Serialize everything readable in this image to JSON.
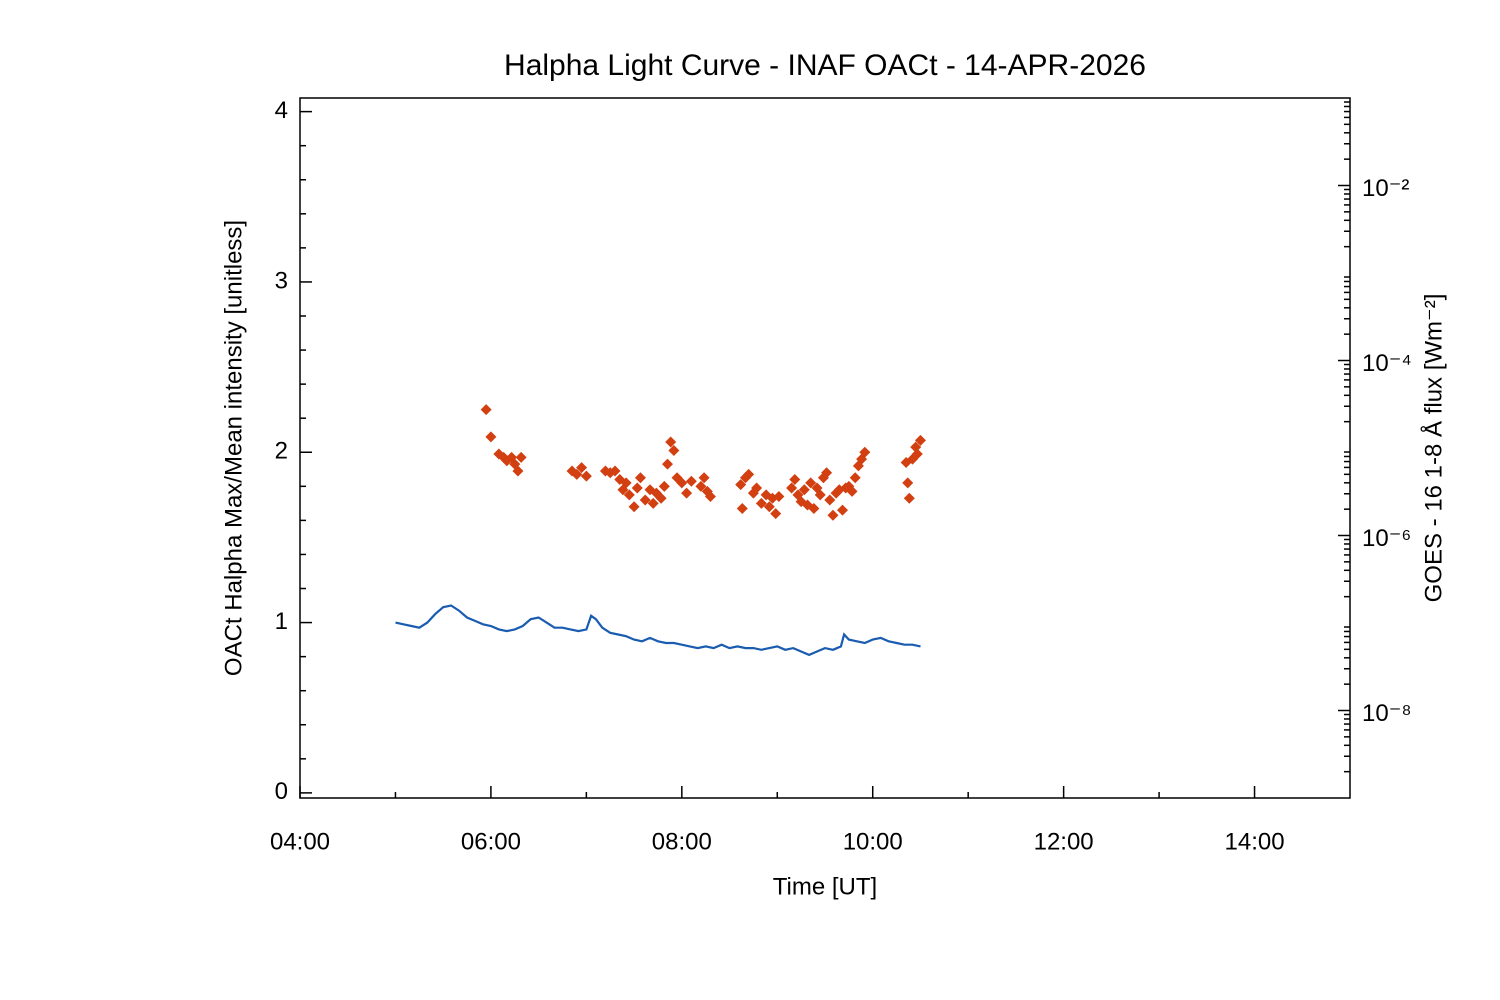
{
  "chart_data": {
    "type": "line_scatter",
    "title": "Halpha Light Curve - INAF OACt - 14-APR-2026",
    "x_label": "Time [UT]",
    "y_label": "OACt Halpha Max/Mean intensity [unitless]",
    "y2_label": "GOES - 16 1-8 Å flux [Wm⁻²]",
    "xlim": [
      "04:00",
      "15:00"
    ],
    "xticks": [
      "04:00",
      "06:00",
      "08:00",
      "10:00",
      "12:00",
      "14:00"
    ],
    "ylim": [
      -0.03,
      4.08
    ],
    "yticks": [
      0,
      1,
      2,
      3,
      4
    ],
    "y2lim": [
      1e-09,
      0.1
    ],
    "y2_log": true,
    "y2ticks": [
      {
        "value": 0.01,
        "label": "10⁻²"
      },
      {
        "value": 0.0001,
        "label": "10⁻⁴"
      },
      {
        "value": 1e-06,
        "label": "10⁻⁶"
      },
      {
        "value": 1e-08,
        "label": "10⁻⁸"
      }
    ],
    "series": [
      {
        "kind": "line",
        "color": "#1a5cb0",
        "x": [
          "05:00",
          "05:05",
          "05:10",
          "05:15",
          "05:20",
          "05:25",
          "05:30",
          "05:35",
          "05:40",
          "05:45",
          "05:50",
          "05:55",
          "06:00",
          "06:05",
          "06:10",
          "06:15",
          "06:20",
          "06:25",
          "06:30",
          "06:35",
          "06:40",
          "06:45",
          "06:50",
          "06:55",
          "07:00",
          "07:03",
          "07:06",
          "07:10",
          "07:15",
          "07:20",
          "07:25",
          "07:30",
          "07:35",
          "07:40",
          "07:45",
          "07:50",
          "07:55",
          "08:00",
          "08:05",
          "08:10",
          "08:15",
          "08:20",
          "08:25",
          "08:30",
          "08:35",
          "08:40",
          "08:45",
          "08:50",
          "08:55",
          "09:00",
          "09:05",
          "09:10",
          "09:15",
          "09:20",
          "09:25",
          "09:30",
          "09:35",
          "09:40",
          "09:42",
          "09:45",
          "09:50",
          "09:55",
          "10:00",
          "10:05",
          "10:10",
          "10:15",
          "10:20",
          "10:25",
          "10:30"
        ],
        "values": [
          1.0,
          0.99,
          0.98,
          0.97,
          1.0,
          1.05,
          1.09,
          1.1,
          1.07,
          1.03,
          1.01,
          0.99,
          0.98,
          0.96,
          0.95,
          0.96,
          0.98,
          1.02,
          1.03,
          1.0,
          0.97,
          0.97,
          0.96,
          0.95,
          0.96,
          1.04,
          1.02,
          0.97,
          0.94,
          0.93,
          0.92,
          0.9,
          0.89,
          0.91,
          0.89,
          0.88,
          0.88,
          0.87,
          0.86,
          0.85,
          0.86,
          0.85,
          0.87,
          0.85,
          0.86,
          0.85,
          0.85,
          0.84,
          0.85,
          0.86,
          0.84,
          0.85,
          0.83,
          0.81,
          0.83,
          0.85,
          0.84,
          0.86,
          0.93,
          0.9,
          0.89,
          0.88,
          0.9,
          0.91,
          0.89,
          0.88,
          0.87,
          0.87,
          0.86
        ]
      },
      {
        "kind": "scatter",
        "color": "#d24012",
        "x": [
          "05:57",
          "06:00",
          "06:05",
          "06:08",
          "06:10",
          "06:13",
          "06:15",
          "06:17",
          "06:19",
          "06:51",
          "06:54",
          "06:57",
          "07:00",
          "07:12",
          "07:15",
          "07:18",
          "07:21",
          "07:23",
          "07:25",
          "07:27",
          "07:30",
          "07:32",
          "07:34",
          "07:37",
          "07:40",
          "07:42",
          "07:44",
          "07:47",
          "07:49",
          "07:51",
          "07:53",
          "07:55",
          "07:57",
          "08:00",
          "08:03",
          "08:06",
          "08:12",
          "08:14",
          "08:16",
          "08:18",
          "08:37",
          "08:38",
          "08:40",
          "08:42",
          "08:45",
          "08:47",
          "08:50",
          "08:53",
          "08:55",
          "08:57",
          "08:59",
          "09:01",
          "09:09",
          "09:11",
          "09:13",
          "09:15",
          "09:17",
          "09:19",
          "09:21",
          "09:23",
          "09:25",
          "09:27",
          "09:29",
          "09:31",
          "09:33",
          "09:35",
          "09:37",
          "09:39",
          "09:41",
          "09:43",
          "09:45",
          "09:47",
          "09:49",
          "09:51",
          "09:53",
          "09:55",
          "10:21",
          "10:22",
          "10:23",
          "10:25",
          "10:27",
          "10:28",
          "10:30"
        ],
        "values": [
          2.25,
          2.09,
          1.99,
          1.97,
          1.95,
          1.97,
          1.93,
          1.89,
          1.97,
          1.89,
          1.87,
          1.91,
          1.86,
          1.89,
          1.88,
          1.89,
          1.84,
          1.78,
          1.82,
          1.75,
          1.68,
          1.79,
          1.85,
          1.72,
          1.78,
          1.7,
          1.76,
          1.73,
          1.8,
          1.93,
          2.06,
          2.01,
          1.85,
          1.82,
          1.76,
          1.83,
          1.8,
          1.85,
          1.77,
          1.74,
          1.81,
          1.67,
          1.85,
          1.87,
          1.76,
          1.79,
          1.7,
          1.75,
          1.68,
          1.73,
          1.64,
          1.74,
          1.79,
          1.84,
          1.75,
          1.71,
          1.78,
          1.69,
          1.82,
          1.67,
          1.79,
          1.75,
          1.85,
          1.88,
          1.72,
          1.63,
          1.76,
          1.78,
          1.66,
          1.79,
          1.8,
          1.77,
          1.85,
          1.92,
          1.96,
          2.0,
          1.94,
          1.82,
          1.73,
          1.96,
          2.03,
          1.99,
          2.07
        ]
      }
    ]
  }
}
